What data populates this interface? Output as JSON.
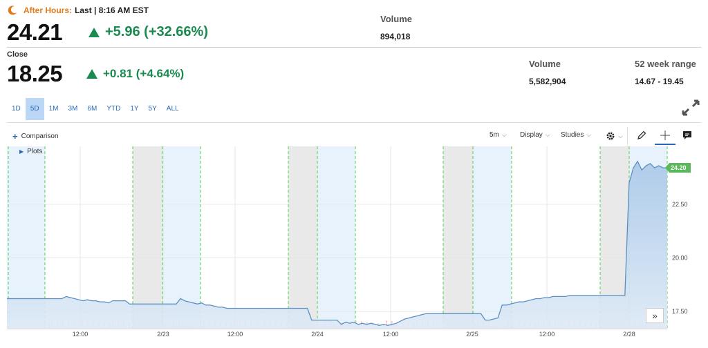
{
  "after_hours": {
    "label": "After Hours:",
    "last_text": "Last | 8:16 AM EST",
    "price": "24.21",
    "change": "+5.96 (+32.66%)",
    "volume_label": "Volume",
    "volume": "894,018"
  },
  "close": {
    "label": "Close",
    "price": "18.25",
    "change": "+0.81 (+4.64%)",
    "volume_label": "Volume",
    "volume": "5,582,904",
    "range_label": "52 week range",
    "range": "14.67 - 19.45"
  },
  "ranges": [
    "1D",
    "5D",
    "1M",
    "3M",
    "6M",
    "YTD",
    "1Y",
    "5Y",
    "ALL"
  ],
  "active_range": "5D",
  "toolbar": {
    "comparison": "Comparison",
    "interval": "5m",
    "display": "Display",
    "studies": "Studies",
    "plots": "Plots"
  },
  "colors": {
    "accent": "#2a68b6",
    "up": "#1b8a4e",
    "after_hours": "#e07b1a",
    "line": "#5b8fc4"
  },
  "chart_data": {
    "type": "area",
    "x_tick_labels": [
      "12:00",
      "2/23",
      "12:00",
      "2/24",
      "12:00",
      "2/25",
      "12:00",
      "2/28"
    ],
    "y_tick_labels": [
      "17.50",
      "20.00",
      "22.50"
    ],
    "y_ticks": [
      17.5,
      20.0,
      22.5
    ],
    "ylim": [
      16.7,
      25.2
    ],
    "last_price_label": "24.20",
    "last_price": 24.2,
    "series": [
      {
        "values": [
          18.1,
          18.1,
          18.1,
          18.1,
          18.1,
          18.1,
          18.1,
          18.1,
          18.1,
          18.1,
          18.1,
          18.1,
          18.1,
          18.1,
          18.2,
          18.15,
          18.1,
          18.05,
          18.0,
          18.05,
          18.0,
          18.0,
          17.95,
          17.95,
          17.9,
          18.0,
          18.0,
          18.0,
          18.0,
          17.85,
          17.85,
          17.85,
          17.85,
          17.85,
          17.85,
          17.85,
          17.85,
          17.85,
          17.85,
          17.85,
          17.85,
          18.1,
          18.0,
          17.95,
          17.9,
          17.85,
          17.9,
          17.8,
          17.8,
          17.75,
          17.7,
          17.7,
          17.65,
          17.65,
          17.65,
          17.65,
          17.65,
          17.65,
          17.65,
          17.65,
          17.65,
          17.65,
          17.65,
          17.65,
          17.65,
          17.65,
          17.65,
          17.65,
          17.65,
          17.65,
          17.65,
          17.65,
          17.1,
          17.1,
          17.1,
          17.1,
          17.1,
          17.1,
          17.1,
          16.9,
          17.0,
          16.95,
          17.0,
          16.9,
          16.95,
          16.9,
          16.95,
          16.9,
          16.85,
          16.9,
          16.85,
          16.9,
          16.95,
          17.05,
          17.15,
          17.2,
          17.25,
          17.3,
          17.35,
          17.4,
          17.4,
          17.4,
          17.4,
          17.4,
          17.4,
          17.4,
          17.4,
          17.4,
          17.4,
          17.4,
          17.4,
          17.4,
          17.4,
          17.1,
          17.1,
          17.15,
          17.2,
          17.8,
          17.8,
          17.85,
          17.9,
          17.95,
          17.95,
          18.0,
          18.05,
          18.1,
          18.1,
          18.15,
          18.15,
          18.2,
          18.2,
          18.2,
          18.2,
          18.25,
          18.25,
          18.25,
          18.25,
          18.25,
          18.25,
          18.25,
          18.25,
          18.25,
          18.25,
          18.25,
          18.25,
          18.25,
          18.25,
          23.5,
          24.2,
          24.5,
          24.1,
          24.3,
          24.4,
          24.2,
          24.3,
          24.2,
          24.2
        ]
      }
    ]
  }
}
